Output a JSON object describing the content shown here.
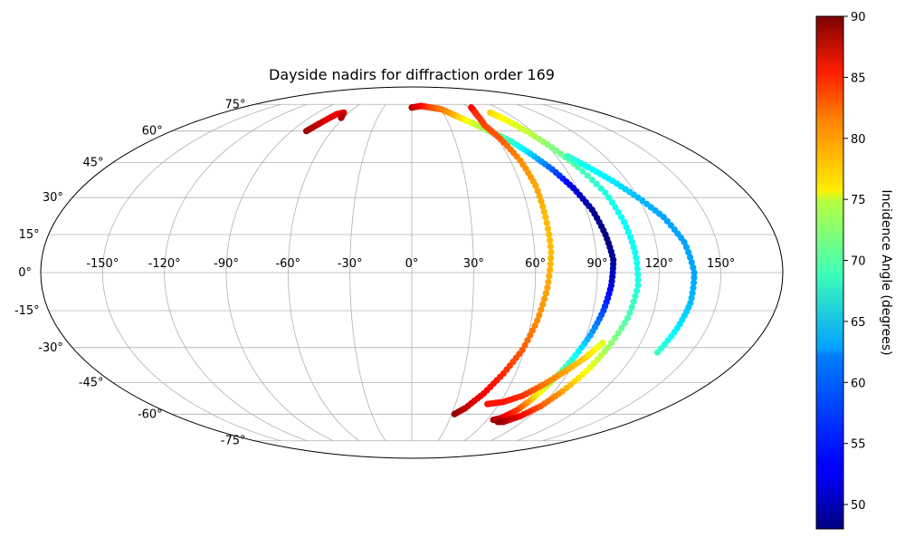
{
  "chart_data": {
    "type": "scatter",
    "projection": "mollweide",
    "title": "Dayside nadirs for diffraction order 169",
    "x_label": "",
    "y_label": "",
    "x_ticks": [
      "-150°",
      "-120°",
      "-90°",
      "-60°",
      "-30°",
      "0°",
      "30°",
      "60°",
      "90°",
      "120°",
      "150°"
    ],
    "y_ticks": [
      "75°",
      "60°",
      "45°",
      "30°",
      "15°",
      "0°",
      "-15°",
      "-30°",
      "-45°",
      "-60°",
      "-75°"
    ],
    "xlim": [
      -180,
      180
    ],
    "ylim": [
      -90,
      90
    ],
    "grid": true,
    "colormap": "jet",
    "colorbar": {
      "label": "Incidence Angle (degrees)",
      "range": [
        48,
        90
      ],
      "ticks": [
        "50",
        "55",
        "60",
        "65",
        "70",
        "75",
        "80",
        "85",
        "90"
      ]
    },
    "series": [
      {
        "points": [
          [
            -79,
            60,
            89
          ],
          [
            -75,
            64,
            87
          ],
          [
            -70,
            69,
            85
          ],
          [
            -65,
            70,
            86
          ],
          [
            -62,
            67,
            88
          ]
        ]
      },
      {
        "points": [
          [
            0,
            73,
            88
          ],
          [
            10,
            74,
            85
          ],
          [
            20,
            73,
            82
          ],
          [
            30,
            72,
            80
          ],
          [
            38,
            69,
            78
          ],
          [
            45,
            66,
            75
          ],
          [
            52,
            63,
            72
          ],
          [
            60,
            59,
            69
          ],
          [
            68,
            55,
            66
          ],
          [
            75,
            49,
            62
          ],
          [
            82,
            42,
            57
          ],
          [
            88,
            34,
            52
          ],
          [
            93,
            25,
            49
          ],
          [
            96,
            15,
            48
          ],
          [
            98,
            5,
            49
          ],
          [
            97,
            -5,
            52
          ],
          [
            95,
            -15,
            56
          ],
          [
            92,
            -25,
            60
          ],
          [
            88,
            -35,
            65
          ],
          [
            84,
            -44,
            70
          ],
          [
            80,
            -52,
            76
          ],
          [
            76,
            -58,
            82
          ],
          [
            70,
            -62,
            86
          ],
          [
            65,
            -63,
            88
          ]
        ]
      },
      {
        "points": [
          [
            63,
            73,
            85
          ],
          [
            60,
            69,
            83
          ],
          [
            58,
            63,
            82
          ],
          [
            62,
            56,
            81
          ],
          [
            66,
            46,
            79
          ],
          [
            68,
            35,
            78
          ],
          [
            68,
            22,
            77
          ],
          [
            68,
            8,
            77
          ],
          [
            66,
            -6,
            78
          ],
          [
            63,
            -19,
            79
          ],
          [
            59,
            -31,
            81
          ],
          [
            53,
            -41,
            83
          ],
          [
            46,
            -50,
            85
          ],
          [
            38,
            -57,
            87
          ],
          [
            32,
            -60,
            89
          ]
        ]
      },
      {
        "points": [
          [
            75,
            70,
            76
          ],
          [
            80,
            66,
            74
          ],
          [
            86,
            60,
            72
          ],
          [
            92,
            52,
            69
          ],
          [
            98,
            43,
            67
          ],
          [
            104,
            32,
            65
          ],
          [
            107,
            20,
            64
          ],
          [
            109,
            8,
            64
          ],
          [
            110,
            -5,
            65
          ],
          [
            108,
            -18,
            67
          ],
          [
            104,
            -30,
            70
          ],
          [
            100,
            -40,
            74
          ],
          [
            95,
            -49,
            78
          ],
          [
            90,
            -56,
            81
          ],
          [
            83,
            -61,
            85
          ],
          [
            75,
            -64,
            88
          ],
          [
            70,
            -64,
            89
          ]
        ]
      },
      {
        "points": [
          [
            97,
            48,
            66
          ],
          [
            104,
            43,
            64
          ],
          [
            112,
            37,
            63
          ],
          [
            120,
            30,
            61
          ],
          [
            128,
            22,
            60
          ],
          [
            134,
            12,
            60
          ],
          [
            137,
            0,
            60
          ],
          [
            137,
            -12,
            61
          ],
          [
            135,
            -22,
            63
          ],
          [
            132,
            -32,
            66
          ]
        ]
      },
      {
        "points": [
          [
            52,
            -55,
            84
          ],
          [
            62,
            -54,
            84
          ],
          [
            72,
            -51,
            83
          ],
          [
            80,
            -46,
            80
          ],
          [
            88,
            -40,
            78
          ],
          [
            95,
            -34,
            76
          ],
          [
            100,
            -28,
            73
          ]
        ]
      }
    ]
  }
}
